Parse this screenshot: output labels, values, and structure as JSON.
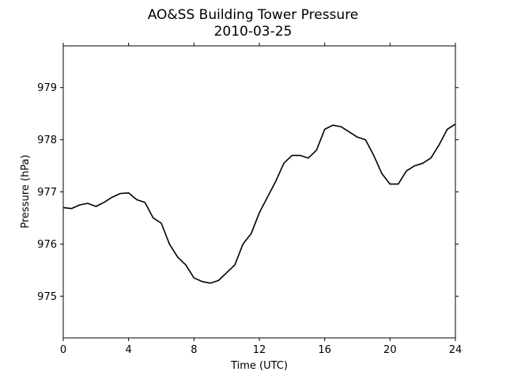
{
  "chart_data": {
    "type": "line",
    "title": "AO&SS Building Tower Pressure",
    "subtitle": "2010-03-25",
    "xlabel": "Time (UTC)",
    "ylabel": "Pressure (hPa)",
    "xlim": [
      0,
      24
    ],
    "ylim": [
      974.2,
      979.8
    ],
    "xticks": [
      0,
      4,
      8,
      12,
      16,
      20,
      24
    ],
    "yticks": [
      975,
      976,
      977,
      978,
      979
    ],
    "grid": false,
    "line_color": "#000000",
    "series": [
      {
        "x": [
          0,
          0.5,
          1,
          1.5,
          2,
          2.5,
          3,
          3.5,
          4,
          4.5,
          5,
          5.5,
          6,
          6.5,
          7,
          7.5,
          8,
          8.5,
          9,
          9.5,
          10,
          10.5,
          11,
          11.5,
          12,
          12.5,
          13,
          13.5,
          14,
          14.5,
          15,
          15.5,
          16,
          16.5,
          17,
          17.5,
          18,
          18.5,
          19,
          19.5,
          20,
          20.5,
          21,
          21.5,
          22,
          22.5,
          23,
          23.5,
          24
        ],
        "y": [
          976.7,
          976.68,
          976.75,
          976.78,
          976.72,
          976.8,
          976.9,
          976.97,
          976.98,
          976.85,
          976.8,
          976.5,
          976.4,
          976.0,
          975.75,
          975.6,
          975.35,
          975.28,
          975.25,
          975.3,
          975.45,
          975.6,
          976.0,
          976.2,
          976.6,
          976.9,
          977.2,
          977.55,
          977.7,
          977.7,
          977.65,
          977.8,
          978.2,
          978.28,
          978.25,
          978.15,
          978.05,
          978.0,
          977.7,
          977.35,
          977.15,
          977.15,
          977.4,
          977.5,
          977.55,
          977.65,
          977.9,
          978.2,
          978.3
        ]
      }
    ]
  }
}
